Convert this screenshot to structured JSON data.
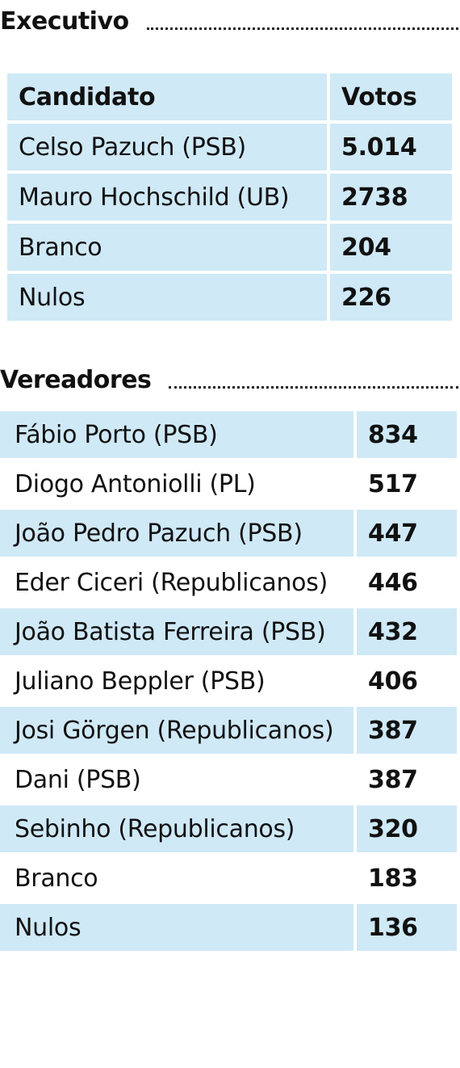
{
  "executivo": {
    "title": "Executivo",
    "header": {
      "candidate": "Candidato",
      "votes": "Votos"
    },
    "rows": [
      {
        "name": "Celso Pazuch (PSB)",
        "votes": "5.014"
      },
      {
        "name": "Mauro Hochschild (UB)",
        "votes": "2738"
      },
      {
        "name": "Branco",
        "votes": "204"
      },
      {
        "name": "Nulos",
        "votes": "226"
      }
    ]
  },
  "vereadores": {
    "title": "Vereadores",
    "rows": [
      {
        "name": "Fábio Porto (PSB)",
        "votes": "834"
      },
      {
        "name": "Diogo Antoniolli (PL)",
        "votes": "517"
      },
      {
        "name": "João Pedro Pazuch (PSB)",
        "votes": "447"
      },
      {
        "name": "Eder Ciceri (Republicanos)",
        "votes": "446"
      },
      {
        "name": "João Batista Ferreira (PSB)",
        "votes": "432"
      },
      {
        "name": "Juliano Beppler (PSB)",
        "votes": "406"
      },
      {
        "name": "Josi Görgen (Republicanos)",
        "votes": "387"
      },
      {
        "name": "Dani (PSB)",
        "votes": "387"
      },
      {
        "name": "Sebinho (Republicanos)",
        "votes": "320"
      },
      {
        "name": "Branco",
        "votes": "183"
      },
      {
        "name": "Nulos",
        "votes": "136"
      }
    ]
  },
  "colors": {
    "row_fill": "#cfe9f7",
    "text": "#111111"
  }
}
